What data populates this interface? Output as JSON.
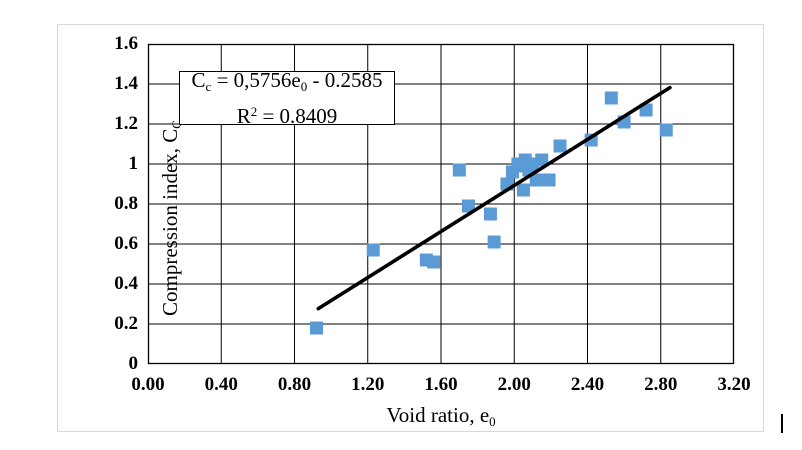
{
  "page": {
    "background": "#ffffff",
    "frame_border_color": "#d8d8d8"
  },
  "chart_data": {
    "type": "scatter",
    "title": "",
    "xlabel": "Void ratio, e0",
    "ylabel": "Compression index, CC",
    "xlabel_segments": [
      {
        "t": "Void ratio, e"
      },
      {
        "t": "0",
        "sub": true
      }
    ],
    "ylabel_segments": [
      {
        "t": "Compression index, C"
      },
      {
        "t": "C",
        "sub": true
      }
    ],
    "xlim": [
      0,
      3.2
    ],
    "ylim": [
      0,
      1.6
    ],
    "x_ticks": [
      {
        "label": "0.00",
        "value": 0.0
      },
      {
        "label": "0.40",
        "value": 0.4
      },
      {
        "label": "0.80",
        "value": 0.8
      },
      {
        "label": "1.20",
        "value": 1.2
      },
      {
        "label": "1.60",
        "value": 1.6
      },
      {
        "label": "2.00",
        "value": 2.0
      },
      {
        "label": "2.40",
        "value": 2.4
      },
      {
        "label": "2.80",
        "value": 2.8
      },
      {
        "label": "3.20",
        "value": 3.2
      }
    ],
    "y_ticks": [
      {
        "label": "0",
        "value": 0.0
      },
      {
        "label": "0.2",
        "value": 0.2
      },
      {
        "label": "0.4",
        "value": 0.4
      },
      {
        "label": "0.6",
        "value": 0.6
      },
      {
        "label": "0.8",
        "value": 0.8
      },
      {
        "label": "1",
        "value": 1.0
      },
      {
        "label": "1.2",
        "value": 1.2
      },
      {
        "label": "1.4",
        "value": 1.4
      },
      {
        "label": "1.6",
        "value": 1.6
      }
    ],
    "grid": true,
    "x_grid_step": 0.4,
    "y_grid_step": 0.2,
    "grid_color": "#000000",
    "border_color": "#000000",
    "marker_color": "#5B9BD5",
    "marker_size": 13,
    "points": [
      {
        "x": 0.92,
        "y": 0.18
      },
      {
        "x": 1.23,
        "y": 0.57
      },
      {
        "x": 1.52,
        "y": 0.52
      },
      {
        "x": 1.56,
        "y": 0.51
      },
      {
        "x": 1.7,
        "y": 0.97
      },
      {
        "x": 1.75,
        "y": 0.79
      },
      {
        "x": 1.87,
        "y": 0.75
      },
      {
        "x": 1.89,
        "y": 0.61
      },
      {
        "x": 1.96,
        "y": 0.9
      },
      {
        "x": 1.99,
        "y": 0.96
      },
      {
        "x": 2.02,
        "y": 1.0
      },
      {
        "x": 2.04,
        "y": 0.99
      },
      {
        "x": 2.05,
        "y": 0.87
      },
      {
        "x": 2.06,
        "y": 1.02
      },
      {
        "x": 2.08,
        "y": 0.97
      },
      {
        "x": 2.1,
        "y": 1.0
      },
      {
        "x": 2.12,
        "y": 0.92
      },
      {
        "x": 2.15,
        "y": 1.02
      },
      {
        "x": 2.19,
        "y": 0.92
      },
      {
        "x": 2.25,
        "y": 1.09
      },
      {
        "x": 2.42,
        "y": 1.12
      },
      {
        "x": 2.53,
        "y": 1.33
      },
      {
        "x": 2.6,
        "y": 1.21
      },
      {
        "x": 2.72,
        "y": 1.27
      },
      {
        "x": 2.83,
        "y": 1.17
      }
    ],
    "trendline": {
      "x_start": 0.93,
      "x_end": 2.85,
      "slope": 0.5756,
      "intercept": -0.2585,
      "color": "#000000",
      "width": 3.6
    },
    "equation_box": {
      "equation_text": "Cc = 0,5756e0 - 0.2585",
      "r_squared_text": "R² = 0.8409",
      "line1_segments": [
        {
          "t": "C"
        },
        {
          "t": "c",
          "sub": true
        },
        {
          "t": " = 0,5756e"
        },
        {
          "t": "0",
          "sub": true
        },
        {
          "t": " - 0.2585"
        }
      ],
      "line2_segments": [
        {
          "t": "R"
        },
        {
          "t": "2",
          "sup": true
        },
        {
          "t": " = 0.8409"
        }
      ]
    }
  }
}
